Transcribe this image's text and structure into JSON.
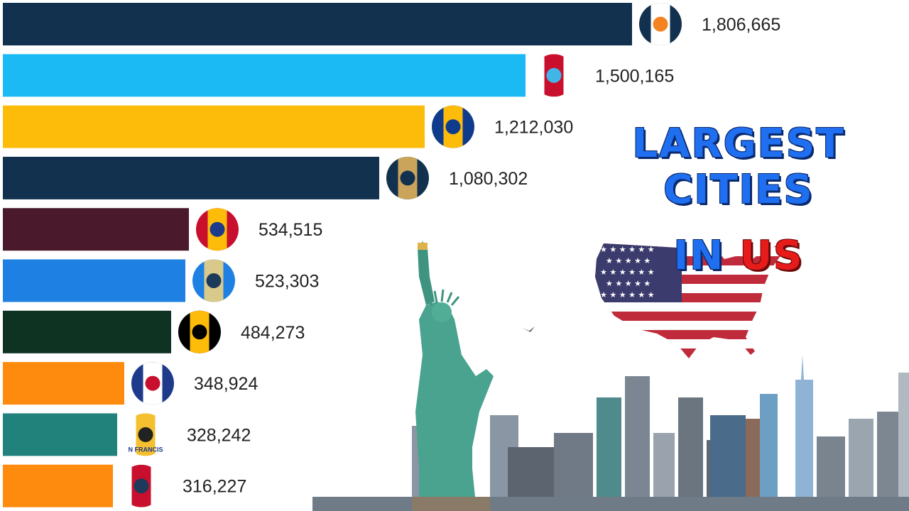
{
  "title": {
    "line1": "LARGEST CITIES",
    "line2_a": "IN",
    "line2_b": "US"
  },
  "chart_data": {
    "type": "bar",
    "orientation": "horizontal",
    "values": [
      1806665,
      1500165,
      1212030,
      1080302,
      534515,
      523303,
      484273,
      348924,
      328242,
      316227
    ],
    "labels": [
      "1,806,665",
      "1,500,165",
      "1,212,030",
      "1,080,302",
      "534,515",
      "523,303",
      "484,273",
      "348,924",
      "328,242",
      "316,227"
    ],
    "bar_colors": [
      "#12314f",
      "#1bbaf5",
      "#fdbc0a",
      "#12314f",
      "#4a1a2c",
      "#1e80e2",
      "#0f3322",
      "#fe8a0e",
      "#21827c",
      "#fe8a0e"
    ],
    "emblems": [
      "nyc-seal-icon",
      "chicago-flag-icon",
      "philadelphia-flag-icon",
      "detroit-seal-icon",
      "st-louis-flag-icon",
      "boston-seal-icon",
      "baltimore-flag-icon",
      "washington-flag-icon",
      "san-francisco-flag-icon",
      "cincinnati-flag-icon"
    ],
    "emblem_text": [
      "",
      "",
      "",
      "",
      "",
      "",
      "",
      "",
      "N FRANCIS",
      ""
    ],
    "xlim": [
      0,
      1806665
    ],
    "grid": false,
    "legend": "none"
  },
  "illustration": {
    "statue": "statue-of-liberty-icon",
    "skyline": "city-skyline-icon",
    "map": "us-flag-map-icon"
  }
}
